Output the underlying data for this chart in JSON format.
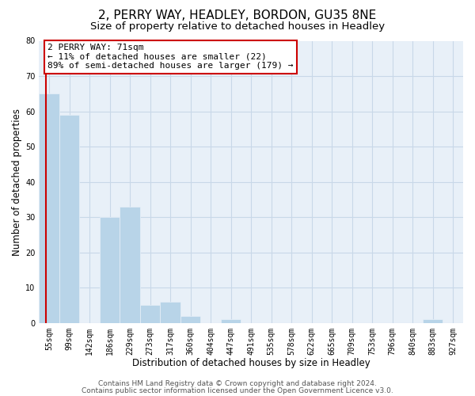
{
  "title": "2, PERRY WAY, HEADLEY, BORDON, GU35 8NE",
  "subtitle": "Size of property relative to detached houses in Headley",
  "xlabel": "Distribution of detached houses by size in Headley",
  "ylabel": "Number of detached properties",
  "categories": [
    "55sqm",
    "99sqm",
    "142sqm",
    "186sqm",
    "229sqm",
    "273sqm",
    "317sqm",
    "360sqm",
    "404sqm",
    "447sqm",
    "491sqm",
    "535sqm",
    "578sqm",
    "622sqm",
    "665sqm",
    "709sqm",
    "753sqm",
    "796sqm",
    "840sqm",
    "883sqm",
    "927sqm"
  ],
  "values": [
    65,
    59,
    0,
    30,
    33,
    5,
    6,
    2,
    0,
    1,
    0,
    0,
    0,
    0,
    0,
    0,
    0,
    0,
    0,
    1,
    0
  ],
  "bar_color": "#b8d4e8",
  "red_line_x": -0.15,
  "annotation_text": "2 PERRY WAY: 71sqm\n← 11% of detached houses are smaller (22)\n89% of semi-detached houses are larger (179) →",
  "annotation_box_facecolor": "#ffffff",
  "annotation_box_edgecolor": "#cc0000",
  "ylim": [
    0,
    80
  ],
  "yticks": [
    0,
    10,
    20,
    30,
    40,
    50,
    60,
    70,
    80
  ],
  "grid_color": "#c8d8e8",
  "plot_bg_color": "#e8f0f8",
  "fig_bg_color": "#ffffff",
  "footer_line1": "Contains HM Land Registry data © Crown copyright and database right 2024.",
  "footer_line2": "Contains public sector information licensed under the Open Government Licence v3.0.",
  "title_fontsize": 11,
  "subtitle_fontsize": 9.5,
  "axis_label_fontsize": 8.5,
  "tick_fontsize": 7,
  "annotation_fontsize": 8,
  "footer_fontsize": 6.5
}
